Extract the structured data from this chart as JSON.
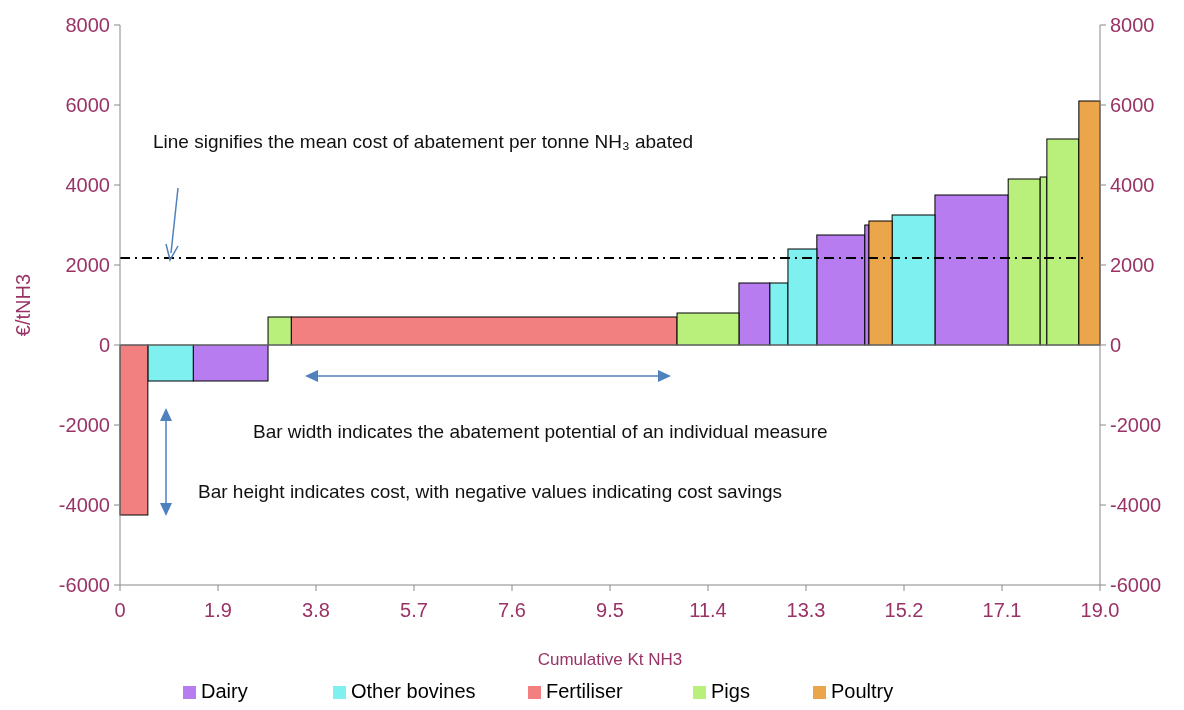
{
  "chart_data": {
    "type": "histogram",
    "xlabel": "Cumulative Kt NH3",
    "ylabel": "€/tNH3",
    "bins": [
      0,
      0.54,
      1.42,
      2.87,
      3.32,
      10.8,
      12.0,
      12.6,
      12.95,
      13.51,
      14.44,
      14.52,
      14.97,
      15.8,
      17.22,
      17.84,
      17.97,
      18.59,
      19.0
    ],
    "series": [
      {
        "name": "Dairy",
        "color": "#b77cf0",
        "values": [
          null,
          null,
          -900,
          null,
          null,
          null,
          1550,
          null,
          null,
          2750,
          3000,
          null,
          null,
          3750,
          null,
          null,
          null,
          null
        ]
      },
      {
        "name": "Other bovines",
        "color": "#7ef0f0",
        "values": [
          null,
          -900,
          null,
          null,
          null,
          null,
          null,
          1550,
          2400,
          null,
          null,
          null,
          3250,
          null,
          null,
          null,
          null,
          null
        ]
      },
      {
        "name": "Fertiliser",
        "color": "#f28080",
        "values": [
          -4250,
          null,
          null,
          null,
          700,
          null,
          null,
          null,
          null,
          null,
          null,
          null,
          null,
          null,
          null,
          null,
          null,
          null
        ]
      },
      {
        "name": "Pigs",
        "color": "#b9f07c",
        "values": [
          null,
          null,
          null,
          700,
          null,
          800,
          null,
          null,
          null,
          null,
          null,
          null,
          null,
          null,
          4150,
          4200,
          5150,
          null
        ]
      },
      {
        "name": "Poultry",
        "color": "#eba54a",
        "values": [
          null,
          null,
          null,
          null,
          null,
          null,
          null,
          null,
          null,
          null,
          null,
          3100,
          null,
          null,
          null,
          null,
          null,
          6100
        ]
      }
    ],
    "xlim": [
      0,
      19
    ],
    "xticks": [
      0,
      1.9,
      3.8,
      5.7,
      7.6,
      9.5,
      11.4,
      13.3,
      15.2,
      17.1,
      {
        "value": 19,
        "label": "19.0"
      }
    ],
    "ylim": [
      -6000,
      8000
    ],
    "yticks": [
      -6000,
      -4000,
      -2000,
      0,
      2000,
      4000,
      6000,
      8000
    ],
    "y2lim": [
      -6000,
      8000
    ],
    "y2ticks": [
      -6000,
      -4000,
      -2000,
      0,
      2000,
      4000,
      6000,
      8000
    ],
    "ref_lines": [
      {
        "axis": "y",
        "value": 2175,
        "color": "#000000",
        "line_style": "dashdot"
      }
    ],
    "annotations": [
      "Line signifies the mean cost of abatement per tonne NH₃ abated",
      "Bar width indicates the abatement potential of an individual measure",
      "Bar height indicates cost, with negative values indicating cost savings"
    ],
    "legend": "bottom"
  }
}
